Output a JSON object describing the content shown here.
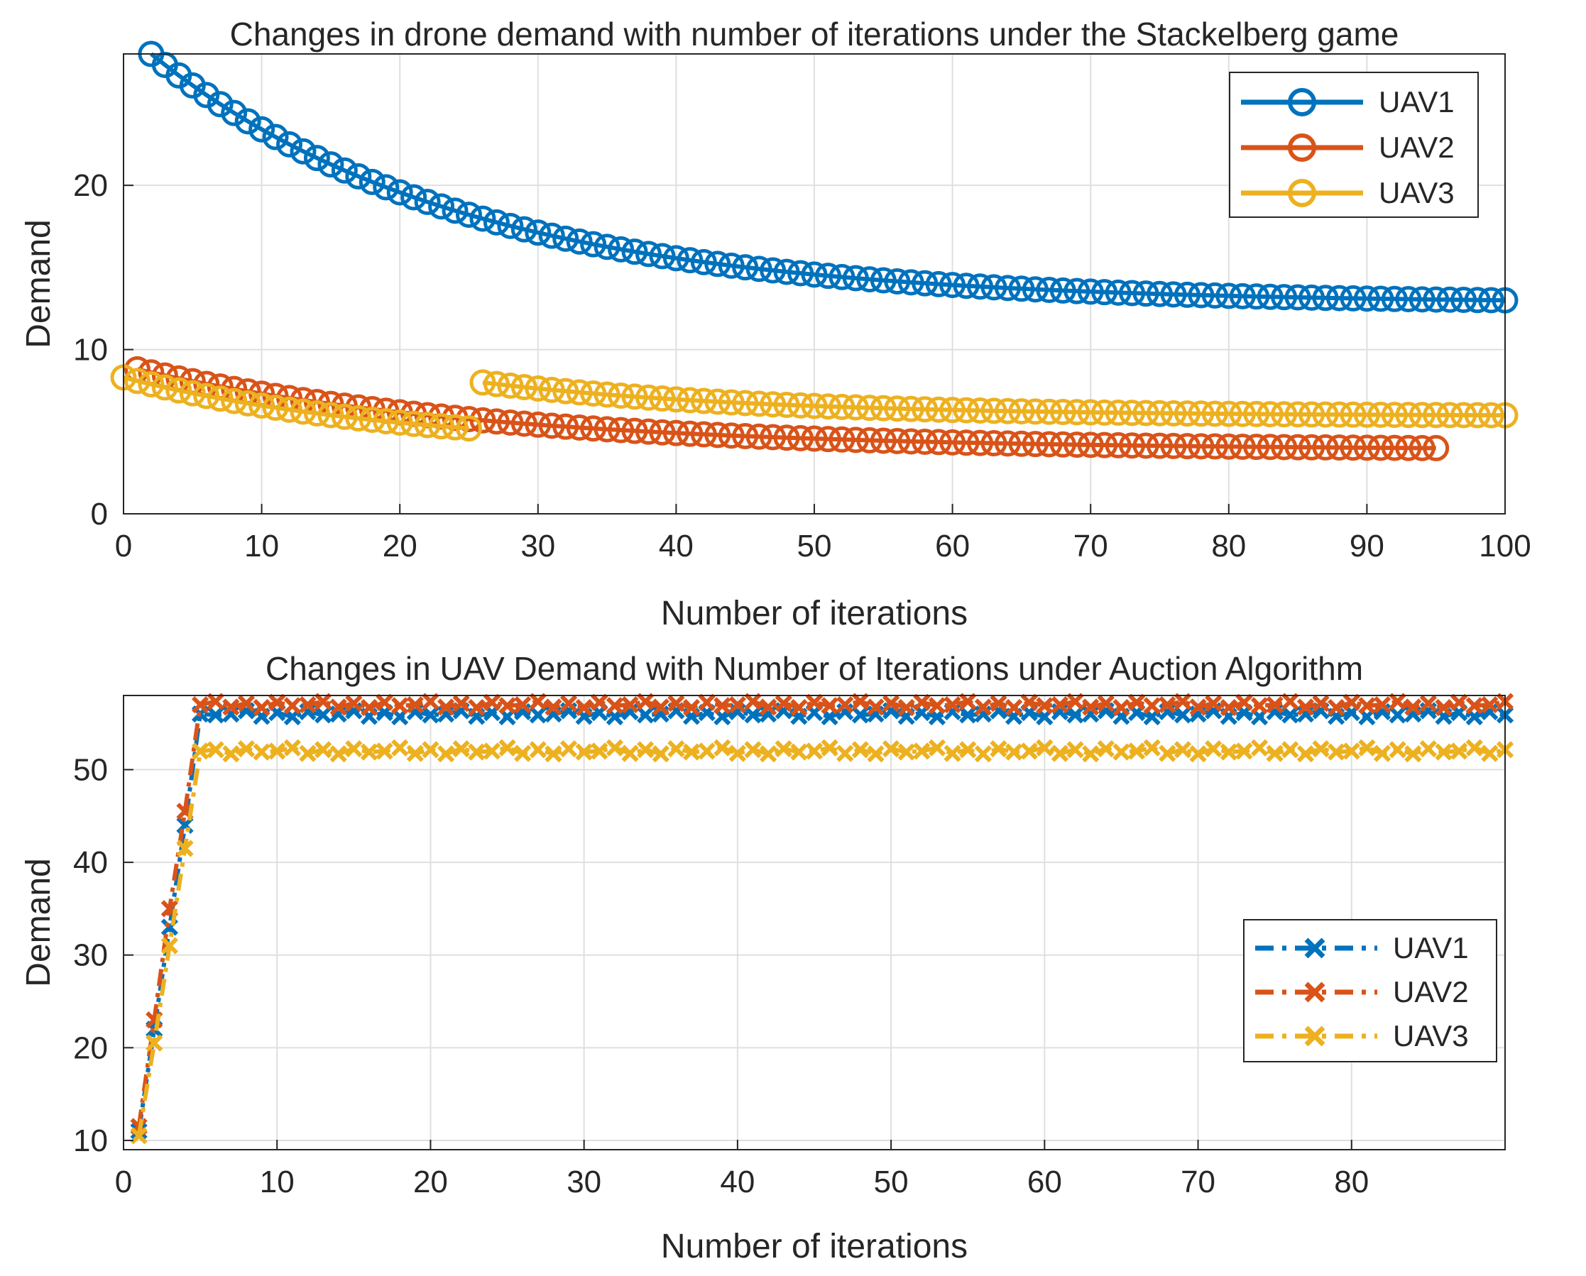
{
  "chart_data": [
    {
      "type": "line",
      "title": "Changes in drone demand with number of iterations under the Stackelberg game",
      "xlabel": "Number of iterations",
      "ylabel": "Demand",
      "xlim": [
        0,
        100
      ],
      "ylim": [
        0,
        28
      ],
      "xticks": [
        0,
        10,
        20,
        30,
        40,
        50,
        60,
        70,
        80,
        90,
        100
      ],
      "yticks": [
        0,
        10,
        20
      ],
      "grid": true,
      "legend_position": "top-right",
      "marker": "circle",
      "line_style": "solid",
      "series": [
        {
          "name": "UAV1",
          "color": "#0072BD",
          "model": {
            "form": "exp_decay",
            "x_start": 2,
            "x_end": 100,
            "y_start": 28.0,
            "y_end": 13.0,
            "rate": 0.045
          }
        },
        {
          "name": "UAV2",
          "color": "#D95319",
          "model": {
            "form": "exp_decay",
            "x_start": 1,
            "x_end": 95,
            "y_start": 8.8,
            "y_end": 4.0,
            "rate": 0.04
          }
        },
        {
          "name": "UAV3",
          "color": "#EDB120",
          "segments": [
            {
              "form": "exp_decay",
              "x_start": 0,
              "x_end": 25,
              "y_start": 8.3,
              "y_end": 5.2,
              "rate": 0.05
            },
            {
              "form": "exp_decay",
              "x_start": 26,
              "x_end": 100,
              "y_start": 8.0,
              "y_end": 6.0,
              "rate": 0.05
            }
          ]
        }
      ]
    },
    {
      "type": "line",
      "title": "Changes in UAV Demand with Number of Iterations under Auction Algorithm",
      "xlabel": "Number of iterations",
      "ylabel": "Demand",
      "xlim": [
        0,
        90
      ],
      "ylim": [
        9,
        58
      ],
      "xticks": [
        0,
        10,
        20,
        30,
        40,
        50,
        60,
        70,
        80
      ],
      "yticks": [
        10,
        20,
        30,
        40,
        50
      ],
      "grid": true,
      "legend_position": "center-right",
      "marker": "x",
      "line_style": "dash-dot",
      "series": [
        {
          "name": "UAV1",
          "color": "#0072BD",
          "x": [
            1,
            2,
            3,
            4,
            5
          ],
          "y": [
            11,
            22,
            33,
            44,
            56
          ],
          "plateau": 56,
          "plateau_end": 90
        },
        {
          "name": "UAV2",
          "color": "#D95319",
          "x": [
            1,
            2,
            3,
            4,
            5
          ],
          "y": [
            11.5,
            23,
            35,
            45.5,
            57
          ],
          "plateau": 57,
          "plateau_end": 90
        },
        {
          "name": "UAV3",
          "color": "#EDB120",
          "x": [
            1,
            2,
            3,
            4,
            5
          ],
          "y": [
            10.5,
            20.5,
            31,
            41.5,
            52
          ],
          "plateau": 52,
          "plateau_end": 90
        }
      ]
    }
  ]
}
